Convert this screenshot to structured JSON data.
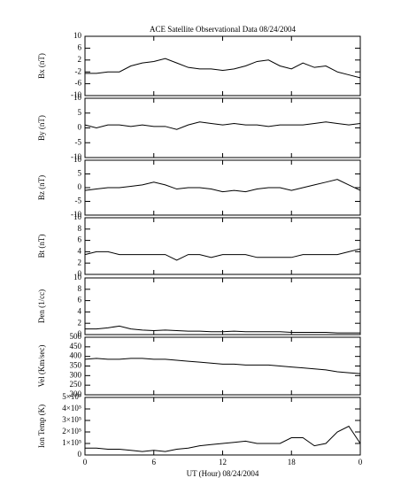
{
  "chart_data": [
    {
      "type": "line",
      "title": "ACE Satellite Observational Data   08/24/2004",
      "ylabel": "Bx (nT)",
      "color": "#000000",
      "xlim": [
        0,
        24
      ],
      "ylim": [
        -10,
        10
      ],
      "yticks": [
        -10,
        -6,
        -2,
        2,
        6,
        10
      ],
      "x": [
        0,
        1,
        2,
        3,
        4,
        5,
        6,
        7,
        8,
        9,
        10,
        11,
        12,
        13,
        14,
        15,
        16,
        17,
        18,
        19,
        20,
        21,
        22,
        23,
        24
      ],
      "values": [
        -2.5,
        -2.5,
        -2,
        -2,
        0,
        1,
        1.5,
        2.5,
        1,
        -0.5,
        -1,
        -1,
        -1.5,
        -1,
        0,
        1.5,
        2,
        0,
        -1,
        1,
        -0.5,
        0,
        -2,
        -3,
        -4
      ]
    },
    {
      "type": "line",
      "ylabel": "By (nT)",
      "color": "#000000",
      "xlim": [
        0,
        24
      ],
      "ylim": [
        -10,
        10
      ],
      "yticks": [
        -10,
        -5,
        0,
        5,
        10
      ],
      "x": [
        0,
        1,
        2,
        3,
        4,
        5,
        6,
        7,
        8,
        9,
        10,
        11,
        12,
        13,
        14,
        15,
        16,
        17,
        18,
        19,
        20,
        21,
        22,
        23,
        24
      ],
      "values": [
        1,
        0,
        1,
        1,
        0.5,
        1,
        0.5,
        0.5,
        -0.5,
        1,
        2,
        1.5,
        1,
        1.5,
        1,
        1,
        0.5,
        1,
        1,
        1,
        1.5,
        2,
        1.5,
        1,
        1.5
      ]
    },
    {
      "type": "line",
      "ylabel": "Bz (nT)",
      "color": "#000000",
      "xlim": [
        0,
        24
      ],
      "ylim": [
        -10,
        10
      ],
      "yticks": [
        -10,
        -5,
        0,
        5,
        10
      ],
      "x": [
        0,
        1,
        2,
        3,
        4,
        5,
        6,
        7,
        8,
        9,
        10,
        11,
        12,
        13,
        14,
        15,
        16,
        17,
        18,
        19,
        20,
        21,
        22,
        23,
        24
      ],
      "values": [
        -1,
        -0.5,
        0,
        0,
        0.5,
        1,
        2,
        1,
        -0.5,
        0,
        0,
        -0.5,
        -1.5,
        -1,
        -1.5,
        -0.5,
        0,
        0,
        -1,
        0,
        1,
        2,
        3,
        1,
        -1
      ]
    },
    {
      "type": "line",
      "ylabel": "Bt (nT)",
      "color": "#000000",
      "xlim": [
        0,
        24
      ],
      "ylim": [
        0,
        10
      ],
      "yticks": [
        0,
        2,
        4,
        6,
        8,
        10
      ],
      "x": [
        0,
        1,
        2,
        3,
        4,
        5,
        6,
        7,
        8,
        9,
        10,
        11,
        12,
        13,
        14,
        15,
        16,
        17,
        18,
        19,
        20,
        21,
        22,
        23,
        24
      ],
      "values": [
        3.5,
        4,
        4,
        3.5,
        3.5,
        3.5,
        3.5,
        3.5,
        2.5,
        3.5,
        3.5,
        3,
        3.5,
        3.5,
        3.5,
        3,
        3,
        3,
        3,
        3.5,
        3.5,
        3.5,
        3.5,
        4,
        4.5
      ]
    },
    {
      "type": "line",
      "ylabel": "Den (1/cc)",
      "color": "#000000",
      "xlim": [
        0,
        24
      ],
      "ylim": [
        0,
        10
      ],
      "yticks": [
        0,
        2,
        4,
        6,
        8,
        10
      ],
      "x": [
        0,
        1,
        2,
        3,
        4,
        5,
        6,
        7,
        8,
        9,
        10,
        11,
        12,
        13,
        14,
        15,
        16,
        17,
        18,
        19,
        20,
        21,
        22,
        23,
        24
      ],
      "values": [
        1,
        1,
        1.2,
        1.5,
        1,
        0.8,
        0.7,
        0.8,
        0.7,
        0.6,
        0.6,
        0.5,
        0.5,
        0.6,
        0.5,
        0.5,
        0.5,
        0.5,
        0.4,
        0.4,
        0.4,
        0.4,
        0.3,
        0.3,
        0.3
      ]
    },
    {
      "type": "line",
      "ylabel": "Vel (Km/sec)",
      "color": "#000000",
      "xlim": [
        0,
        24
      ],
      "ylim": [
        200,
        500
      ],
      "yticks": [
        200,
        250,
        300,
        350,
        400,
        450,
        500
      ],
      "x": [
        0,
        1,
        2,
        3,
        4,
        5,
        6,
        7,
        8,
        9,
        10,
        11,
        12,
        13,
        14,
        15,
        16,
        17,
        18,
        19,
        20,
        21,
        22,
        23,
        24
      ],
      "values": [
        385,
        390,
        385,
        385,
        390,
        390,
        385,
        385,
        380,
        375,
        370,
        365,
        360,
        360,
        355,
        355,
        355,
        350,
        345,
        340,
        335,
        330,
        320,
        315,
        310
      ]
    },
    {
      "type": "line",
      "ylabel": "Ion Temp (K)",
      "xlabel": "UT (Hour)  08/24/2004",
      "color": "#000000",
      "xlim": [
        0,
        24
      ],
      "ylim": [
        0,
        500000
      ],
      "yticks": [
        0,
        {
          "value": 100000,
          "label": "1×10⁵"
        },
        {
          "value": 200000,
          "label": "2×10⁵"
        },
        {
          "value": 300000,
          "label": "3×10⁵"
        },
        {
          "value": 400000,
          "label": "4×10⁵"
        },
        {
          "value": 500000,
          "label": "5×10⁵"
        }
      ],
      "xticks": [
        0,
        6,
        12,
        18,
        {
          "value": 24,
          "label": "0"
        }
      ],
      "x": [
        0,
        1,
        2,
        3,
        4,
        5,
        6,
        7,
        8,
        9,
        10,
        11,
        12,
        13,
        14,
        15,
        16,
        17,
        18,
        19,
        20,
        21,
        22,
        23,
        24
      ],
      "values": [
        60000,
        60000,
        50000,
        50000,
        40000,
        30000,
        40000,
        30000,
        50000,
        60000,
        80000,
        90000,
        100000,
        110000,
        120000,
        100000,
        100000,
        100000,
        150000,
        150000,
        80000,
        100000,
        200000,
        250000,
        100000
      ]
    }
  ]
}
